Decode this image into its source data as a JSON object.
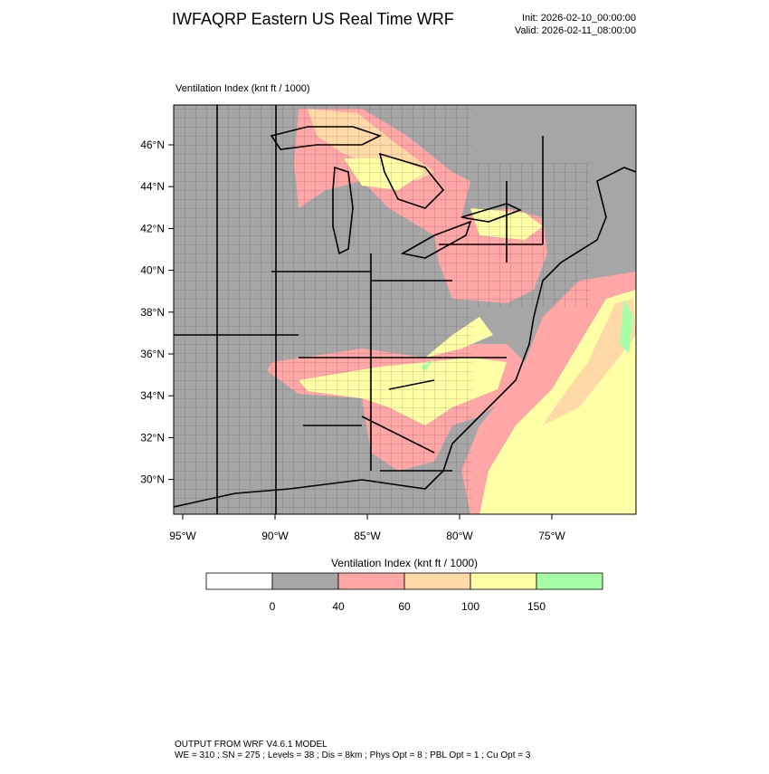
{
  "header": {
    "title": "IWFAQRP Eastern US Real Time WRF",
    "init": "Init: 2026-02-10_00:00:00",
    "valid": "Valid: 2026-02-11_08:00:00"
  },
  "map": {
    "title": "Ventilation Index   (knt ft / 1000)",
    "lat_labels": [
      "46°N",
      "44°N",
      "42°N",
      "40°N",
      "38°N",
      "36°N",
      "34°N",
      "32°N",
      "30°N"
    ],
    "lon_labels": [
      "95°W",
      "90°W",
      "85°W",
      "80°W",
      "75°W"
    ]
  },
  "colorbar": {
    "title": "Ventilation Index  (knt ft / 1000)",
    "levels": [
      0,
      40,
      60,
      100,
      150
    ],
    "colors": [
      "#ffffff",
      "#a6a6a6",
      "#ffa6a6",
      "#ffd9a6",
      "#ffffa6",
      "#a6ffa6"
    ]
  },
  "footer": {
    "line1": "OUTPUT FROM WRF V4.6.1 MODEL",
    "line2": "WE = 310 ; SN = 275 ; Levels = 38 ; Dis = 8km ; Phys Opt = 8 ; PBL Opt = 1 ; Cu Opt = 3"
  }
}
